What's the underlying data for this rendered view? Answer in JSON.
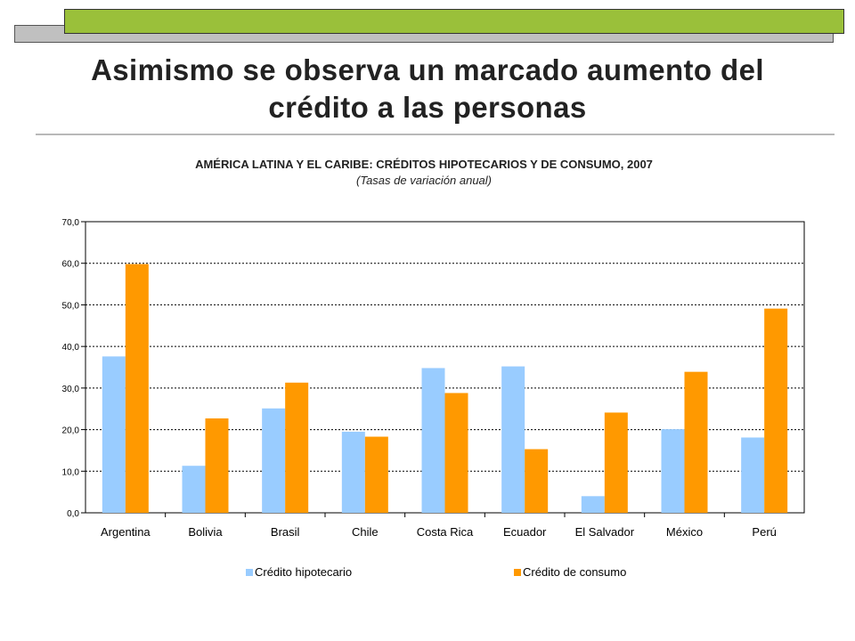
{
  "slide": {
    "title_line1": "Asimismo se observa un marcado aumento del",
    "title_line2": "crédito a las personas"
  },
  "chart_data": {
    "type": "bar",
    "title": "AMÉRICA LATINA Y EL CARIBE: CRÉDITOS HIPOTECARIOS Y DE CONSUMO, 2007",
    "subtitle": "(Tasas de variación anual)",
    "categories": [
      "Argentina",
      "Bolivia",
      "Brasil",
      "Chile",
      "Costa Rica",
      "Ecuador",
      "El Salvador",
      "México",
      "Perú"
    ],
    "series": [
      {
        "name": "Crédito hipotecario",
        "color": "#99ccff",
        "values": [
          37.6,
          11.3,
          25.1,
          19.5,
          34.8,
          35.2,
          4.0,
          20.1,
          18.1
        ]
      },
      {
        "name": "Crédito de consumo",
        "color": "#ff9900",
        "values": [
          59.8,
          22.7,
          31.3,
          18.3,
          28.8,
          15.3,
          24.1,
          33.9,
          49.1
        ]
      }
    ],
    "yticks": [
      "0,0",
      "10,0",
      "20,0",
      "30,0",
      "40,0",
      "50,0",
      "60,0",
      "70,0"
    ],
    "ylim": [
      0,
      70
    ],
    "grid": true,
    "legend": "bottom"
  }
}
